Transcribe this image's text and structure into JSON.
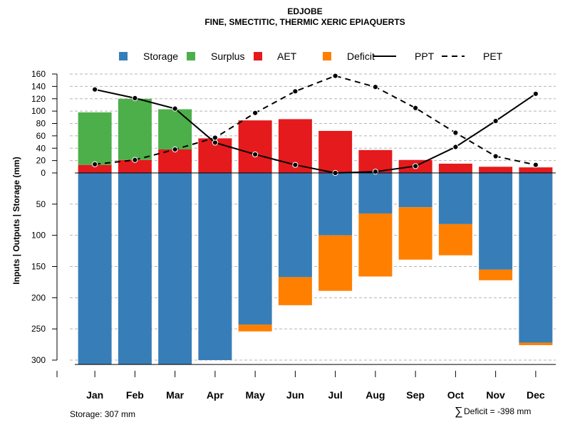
{
  "chart_data": {
    "type": "bar",
    "title": "EDJOBE",
    "subtitle": "FINE, SMECTITIC, THERMIC XERIC EPIAQUERTS",
    "ylabel_parts": [
      "Inputs",
      "Outputs",
      "Storage",
      "(mm)"
    ],
    "ylabel_separator": "|",
    "categories": [
      "Jan",
      "Feb",
      "Mar",
      "Apr",
      "May",
      "Jun",
      "Jul",
      "Aug",
      "Sep",
      "Oct",
      "Nov",
      "Dec"
    ],
    "upper_axis": {
      "ticks": [
        0,
        20,
        40,
        60,
        80,
        100,
        120,
        140,
        160
      ],
      "ylim": [
        0,
        160
      ]
    },
    "lower_axis": {
      "ticks": [
        50,
        100,
        150,
        200,
        250,
        300
      ],
      "ylim": [
        0,
        307
      ]
    },
    "legend": [
      {
        "label": "Storage",
        "kind": "box",
        "color": "#377EB8"
      },
      {
        "label": "Surplus",
        "kind": "box",
        "color": "#4DAF4A"
      },
      {
        "label": "AET",
        "kind": "box",
        "color": "#E41A1C"
      },
      {
        "label": "Deficit",
        "kind": "box",
        "color": "#FF7F00"
      },
      {
        "label": "PPT",
        "kind": "solid",
        "color": "#000000"
      },
      {
        "label": "PET",
        "kind": "dashed",
        "color": "#000000"
      }
    ],
    "series": [
      {
        "name": "AET",
        "values": [
          13,
          21,
          38,
          56,
          85,
          87,
          68,
          37,
          21,
          15,
          10,
          9
        ]
      },
      {
        "name": "Surplus",
        "values": [
          85,
          99,
          65,
          0,
          0,
          0,
          0,
          0,
          0,
          0,
          0,
          0
        ]
      },
      {
        "name": "Storage",
        "values": [
          307,
          307,
          307,
          300,
          243,
          167,
          100,
          65,
          55,
          82,
          155,
          272
        ]
      },
      {
        "name": "Deficit",
        "values": [
          0,
          0,
          0,
          0,
          11,
          45,
          89,
          101,
          84,
          50,
          17,
          4
        ]
      },
      {
        "name": "PPT",
        "values": [
          135,
          121,
          104,
          49,
          30,
          13,
          0,
          2,
          11,
          42,
          84,
          128
        ]
      },
      {
        "name": "PET",
        "values": [
          14,
          21,
          38,
          57,
          97,
          132,
          157,
          139,
          105,
          65,
          27,
          13
        ]
      }
    ],
    "storage_capacity": 307,
    "total_deficit": -398,
    "grid": true
  },
  "footer": {
    "storage_label": "Storage: 307 mm",
    "deficit_symbol": "∑",
    "deficit_label": "Deficit = -398 mm"
  }
}
